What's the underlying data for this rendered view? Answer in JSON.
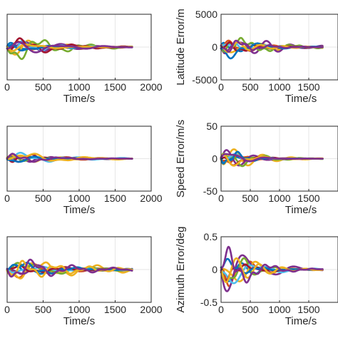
{
  "chart_data": [
    {
      "type": "line",
      "panel": "left-top",
      "xlabel": "Time/s",
      "ylabel": "",
      "xlim": [
        0,
        2000
      ],
      "ylim": [
        -5000,
        5000
      ],
      "xticks": [
        0,
        500,
        1000,
        1500,
        2000
      ],
      "xtick_labels": [
        "0",
        "500",
        "1000",
        "1500",
        "2000"
      ],
      "yticks": [],
      "ytick_labels": [],
      "grid": true,
      "x_end": 1740,
      "seed": 11,
      "peak_time": 260,
      "amplitude_fraction": 0.42,
      "series_count": 10
    },
    {
      "type": "line",
      "panel": "right-top",
      "xlabel": "Time/s",
      "ylabel": "Latitude Error/m",
      "xlim": [
        0,
        2000
      ],
      "ylim": [
        -5000,
        5000
      ],
      "xticks": [
        0,
        500,
        1000,
        1500
      ],
      "xtick_labels": [
        "0",
        "500",
        "1000",
        "1500"
      ],
      "yticks": [
        -5000,
        0,
        5000
      ],
      "ytick_labels": [
        "-5000",
        "0",
        "5000"
      ],
      "grid": true,
      "x_end": 1740,
      "seed": 23,
      "peak_time": 330,
      "amplitude_fraction": 0.45,
      "series_count": 10
    },
    {
      "type": "line",
      "panel": "left-middle",
      "xlabel": "Time/s",
      "ylabel": "",
      "xlim": [
        0,
        2000
      ],
      "ylim": [
        -50,
        50
      ],
      "xticks": [
        0,
        500,
        1000,
        1500,
        2000
      ],
      "xtick_labels": [
        "0",
        "500",
        "1000",
        "1500",
        "2000"
      ],
      "yticks": [],
      "ytick_labels": [],
      "grid": true,
      "x_end": 1740,
      "seed": 37,
      "peak_time": 300,
      "amplitude_fraction": 0.3,
      "series_count": 10
    },
    {
      "type": "line",
      "panel": "right-middle",
      "xlabel": "Time/s",
      "ylabel": "Speed Error/m/s",
      "xlim": [
        0,
        2000
      ],
      "ylim": [
        -50,
        50
      ],
      "xticks": [
        0,
        500,
        1000,
        1500
      ],
      "xtick_labels": [
        "0",
        "500",
        "1000",
        "1500"
      ],
      "yticks": [
        -50,
        0,
        50
      ],
      "ytick_labels": [
        "-50",
        "0",
        "50"
      ],
      "grid": true,
      "x_end": 1740,
      "seed": 41,
      "peak_time": 200,
      "amplitude_fraction": 0.4,
      "series_count": 10
    },
    {
      "type": "line",
      "panel": "left-bottom",
      "xlabel": "Time/s",
      "ylabel": "",
      "xlim": [
        0,
        2000
      ],
      "ylim": [
        -0.5,
        0.5
      ],
      "xticks": [
        0,
        500,
        1000,
        1500,
        2000
      ],
      "xtick_labels": [
        "0",
        "500",
        "1000",
        "1500",
        "2000"
      ],
      "yticks": [],
      "ytick_labels": [],
      "grid": true,
      "x_end": 1740,
      "seed": 53,
      "peak_time": 430,
      "amplitude_fraction": 0.35,
      "series_count": 10
    },
    {
      "type": "line",
      "panel": "right-bottom",
      "xlabel": "Time/s",
      "ylabel": "Azimuth Error/deg",
      "xlim": [
        0,
        2000
      ],
      "ylim": [
        -0.5,
        0.5
      ],
      "xticks": [
        0,
        500,
        1000,
        1500
      ],
      "xtick_labels": [
        "0",
        "500",
        "1000",
        "1500"
      ],
      "yticks": [
        -0.5,
        0,
        0.5
      ],
      "ytick_labels": [
        "-0.5",
        "0",
        "0.5"
      ],
      "grid": true,
      "x_end": 1740,
      "seed": 67,
      "peak_time": 250,
      "amplitude_fraction": 0.8,
      "series_count": 10
    }
  ],
  "series_colors": [
    "#0072BD",
    "#D95319",
    "#EDB120",
    "#7E2F8E",
    "#77AC30",
    "#4DBEEE",
    "#A2142F",
    "#0072BD",
    "#EDB120",
    "#7E2F8E"
  ]
}
